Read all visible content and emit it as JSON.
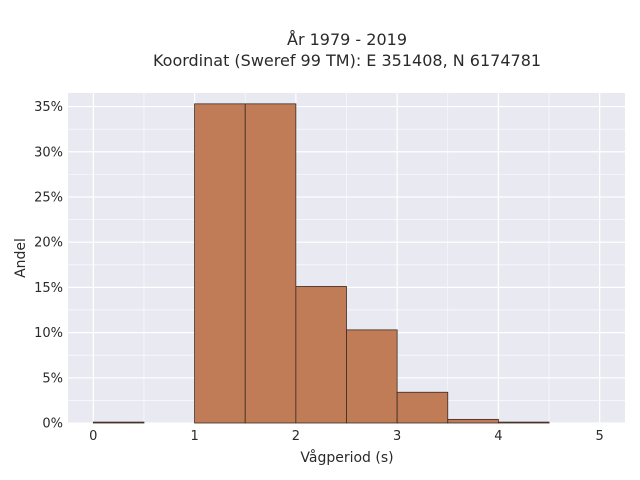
{
  "chart_data": {
    "type": "bar",
    "title_line1": "År 1979 - 2019",
    "title_line2": "Koordinat (Sweref 99 TM): E 351408, N 6174781",
    "xlabel": "Vågperiod (s)",
    "ylabel": "Andel",
    "xlim": [
      -0.25,
      5.25
    ],
    "ylim": [
      0,
      36.5
    ],
    "x_ticks": [
      0,
      1,
      2,
      3,
      4,
      5
    ],
    "y_ticks": [
      0,
      5,
      10,
      15,
      20,
      25,
      30,
      35
    ],
    "y_tick_labels": [
      "0%",
      "5%",
      "10%",
      "15%",
      "20%",
      "25%",
      "30%",
      "35%"
    ],
    "bin_width": 0.5,
    "bins": [
      0,
      0.5,
      1,
      1.5,
      2,
      2.5,
      3,
      3.5,
      4,
      4.5
    ],
    "values": [
      0.1,
      0,
      35.3,
      35.3,
      15.1,
      10.3,
      3.4,
      0.4,
      0.1,
      0
    ],
    "grid": true,
    "colors": {
      "bar_fill": "#c07c57",
      "bar_stroke": "#3b2a22",
      "plot_bg": "#e9e9f2",
      "grid": "#ffffff"
    }
  }
}
